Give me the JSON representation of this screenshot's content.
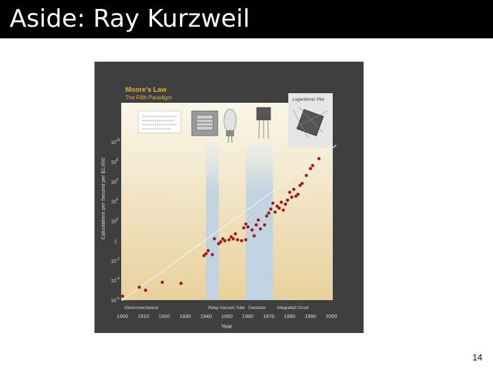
{
  "slide": {
    "title": "Aside: Ray Kurzweil",
    "page_number": "14"
  },
  "colors": {
    "title_bar": "#000000",
    "chart_background": "#3f3f3f",
    "plot_gradient_top": "#faf6ea",
    "plot_gradient_bottom": "#e8d19c",
    "band": "#bfd3e2",
    "points": "#a11616",
    "trend_dots": "#f2f2f2",
    "heading": "#e0b43c"
  },
  "chart_data": {
    "type": "scatter",
    "title": "Moore's Law",
    "subtitle": "The Fifth Paradigm",
    "xlabel": "Year",
    "ylabel": "Calculations per Second per $1,000",
    "scale_note": "Logarithmic Plot",
    "y_scale": "log10",
    "xlim": [
      1900,
      2000
    ],
    "ylim_log10": [
      -6,
      10
    ],
    "x_ticks": [
      "1900",
      "1910",
      "1920",
      "1930",
      "1940",
      "1950",
      "1960",
      "1970",
      "1980",
      "1990",
      "2000"
    ],
    "y_ticks": [
      {
        "base": "10",
        "exp": "10",
        "log": 10
      },
      {
        "base": "10",
        "exp": "8",
        "log": 8
      },
      {
        "base": "10",
        "exp": "6",
        "log": 6
      },
      {
        "base": "10",
        "exp": "4",
        "log": 4
      },
      {
        "base": "10",
        "exp": "2",
        "log": 2
      },
      {
        "base": "1",
        "exp": "",
        "log": 0
      },
      {
        "base": "10",
        "exp": "-2",
        "log": -2
      },
      {
        "base": "10",
        "exp": "-4",
        "log": -4
      },
      {
        "base": "10",
        "exp": "-6",
        "log": -6
      }
    ],
    "paradigms": [
      {
        "label": "Electromechanical",
        "x_range": [
          1900,
          1940
        ],
        "highlighted": false
      },
      {
        "label": "Relay",
        "x_range": [
          1940,
          1946
        ],
        "highlighted": true
      },
      {
        "label": "Vacuum Tube",
        "x_range": [
          1946,
          1959
        ],
        "highlighted": false
      },
      {
        "label": "Transistor",
        "x_range": [
          1959,
          1972
        ],
        "highlighted": true
      },
      {
        "label": "Integrated Circuit",
        "x_range": [
          1972,
          2002
        ],
        "highlighted": false
      }
    ],
    "trend": [
      [
        1900,
        -6.0
      ],
      [
        2002,
        9.6
      ]
    ],
    "points": [
      [
        1900,
        -5.6
      ],
      [
        1908,
        -4.7
      ],
      [
        1911,
        -5.0
      ],
      [
        1919,
        -4.2
      ],
      [
        1928,
        -4.3
      ],
      [
        1939,
        -1.5
      ],
      [
        1940,
        -1.3
      ],
      [
        1941,
        -1.0
      ],
      [
        1943,
        -1.4
      ],
      [
        1944,
        0.2
      ],
      [
        1946,
        -0.3
      ],
      [
        1947,
        -0.1
      ],
      [
        1948,
        0.2
      ],
      [
        1949,
        0.0
      ],
      [
        1951,
        0.1
      ],
      [
        1952,
        0.4
      ],
      [
        1953,
        0.2
      ],
      [
        1954,
        0.7
      ],
      [
        1955,
        0.1
      ],
      [
        1957,
        0.0
      ],
      [
        1958,
        1.3
      ],
      [
        1959,
        0.1
      ],
      [
        1959,
        1.7
      ],
      [
        1960,
        1.4
      ],
      [
        1962,
        1.1
      ],
      [
        1963,
        0.5
      ],
      [
        1964,
        1.6
      ],
      [
        1965,
        2.1
      ],
      [
        1966,
        1.2
      ],
      [
        1968,
        1.6
      ],
      [
        1969,
        2.5
      ],
      [
        1970,
        2.8
      ],
      [
        1971,
        3.2
      ],
      [
        1972,
        3.8
      ],
      [
        1973,
        2.9
      ],
      [
        1974,
        3.5
      ],
      [
        1975,
        3.3
      ],
      [
        1976,
        3.9
      ],
      [
        1977,
        3.1
      ],
      [
        1978,
        3.7
      ],
      [
        1979,
        4.1
      ],
      [
        1980,
        4.9
      ],
      [
        1981,
        4.4
      ],
      [
        1982,
        5.2
      ],
      [
        1983,
        4.5
      ],
      [
        1984,
        4.7
      ],
      [
        1985,
        5.6
      ],
      [
        1986,
        5.8
      ],
      [
        1988,
        6.6
      ],
      [
        1990,
        7.3
      ],
      [
        1991,
        7.6
      ],
      [
        1994,
        8.3
      ]
    ]
  }
}
